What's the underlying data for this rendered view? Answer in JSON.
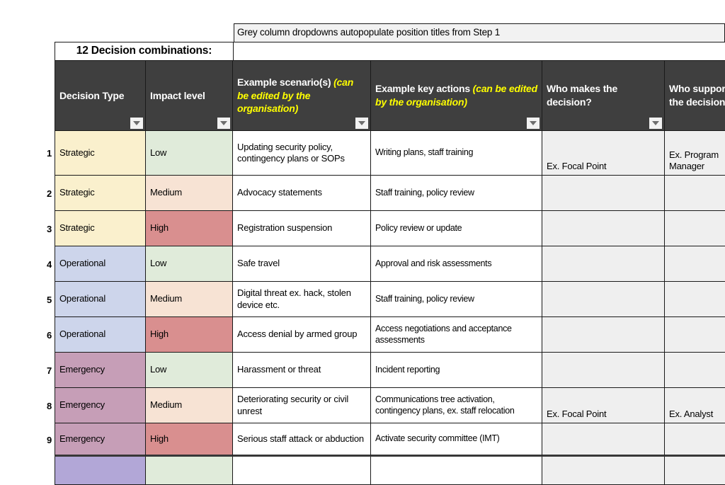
{
  "banner": {
    "text": "Grey column dropdowns autopopulate position titles from Step 1"
  },
  "title": "12 Decision combinations:",
  "colors": {
    "header_bg": "#3F3F3F",
    "header_text": "#FFFFFF",
    "header_note_text": "#FFFF00",
    "banner_bg": "#F2F2F2",
    "strategic": "#FAF0CD",
    "operational": "#CDD5EB",
    "emergency": "#C69EB7",
    "row10_type": "#B2A7D7",
    "low": "#E0EBDA",
    "medium": "#F7E3D4",
    "high": "#D98F8F",
    "who_bg": "#EFEFEF",
    "plain_bg": "#FFFFFF"
  },
  "table": {
    "headers": [
      {
        "label": "Decision Type",
        "note": "",
        "has_dropdown": true
      },
      {
        "label": "Impact level",
        "note": "",
        "has_dropdown": true
      },
      {
        "label": "Example scenario(s)",
        "note": "(can be edited by the organisation)",
        "has_dropdown": true
      },
      {
        "label": "Example key actions",
        "note": "(can be edited by the organisation)",
        "has_dropdown": true
      },
      {
        "label": "Who makes the decision?",
        "note": "",
        "has_dropdown": true
      },
      {
        "label": "Who supports the decision?",
        "note": "",
        "has_dropdown": true
      }
    ],
    "rows": [
      {
        "num": "1",
        "type": "Strategic",
        "type_color": "strategic",
        "impact": "Low",
        "impact_color": "low",
        "scenario": "Updating security policy, contingency plans or SOPs",
        "actions": "Writing plans, staff training",
        "who_makes": "Ex. Focal Point",
        "who_supports": "Ex. Program Manager"
      },
      {
        "num": "2",
        "type": "Strategic",
        "type_color": "strategic",
        "impact": "Medium",
        "impact_color": "medium",
        "scenario": "Advocacy statements",
        "actions": "Staff training, policy review",
        "who_makes": "",
        "who_supports": ""
      },
      {
        "num": "3",
        "type": "Strategic",
        "type_color": "strategic",
        "impact": "High",
        "impact_color": "high",
        "scenario": "Registration suspension",
        "actions": "Policy review or update",
        "who_makes": "",
        "who_supports": ""
      },
      {
        "num": "4",
        "type": "Operational",
        "type_color": "operational",
        "impact": "Low",
        "impact_color": "low",
        "scenario": "Safe travel",
        "actions": "Approval and risk assessments",
        "who_makes": "",
        "who_supports": ""
      },
      {
        "num": "5",
        "type": "Operational",
        "type_color": "operational",
        "impact": "Medium",
        "impact_color": "medium",
        "scenario": "Digital threat ex. hack, stolen device etc.",
        "actions": "Staff training, policy review",
        "who_makes": "",
        "who_supports": ""
      },
      {
        "num": "6",
        "type": "Operational",
        "type_color": "operational",
        "impact": "High",
        "impact_color": "high",
        "scenario": "Access denial by armed group",
        "actions": "Access negotiations and acceptance assessments",
        "who_makes": "",
        "who_supports": ""
      },
      {
        "num": "7",
        "type": "Emergency",
        "type_color": "emergency",
        "impact": "Low",
        "impact_color": "low",
        "scenario": "Harassment or threat",
        "actions": "Incident reporting",
        "who_makes": "",
        "who_supports": ""
      },
      {
        "num": "8",
        "type": "Emergency",
        "type_color": "emergency",
        "impact": "Medium",
        "impact_color": "medium",
        "scenario": "Deteriorating security or civil unrest",
        "actions": "Communications tree activation, contingency plans, ex. staff relocation",
        "who_makes": "Ex. Focal Point",
        "who_supports": "Ex. Analyst"
      },
      {
        "num": "9",
        "type": "Emergency",
        "type_color": "emergency",
        "impact": "High",
        "impact_color": "high",
        "scenario": "Serious staff attack or abduction",
        "actions": "Activate security committee (IMT)",
        "who_makes": "",
        "who_supports": ""
      },
      {
        "num": "",
        "type": "",
        "type_color": "row10_type",
        "impact": "",
        "impact_color": "low",
        "scenario": "",
        "actions": "",
        "who_makes": "",
        "who_supports": ""
      }
    ]
  }
}
